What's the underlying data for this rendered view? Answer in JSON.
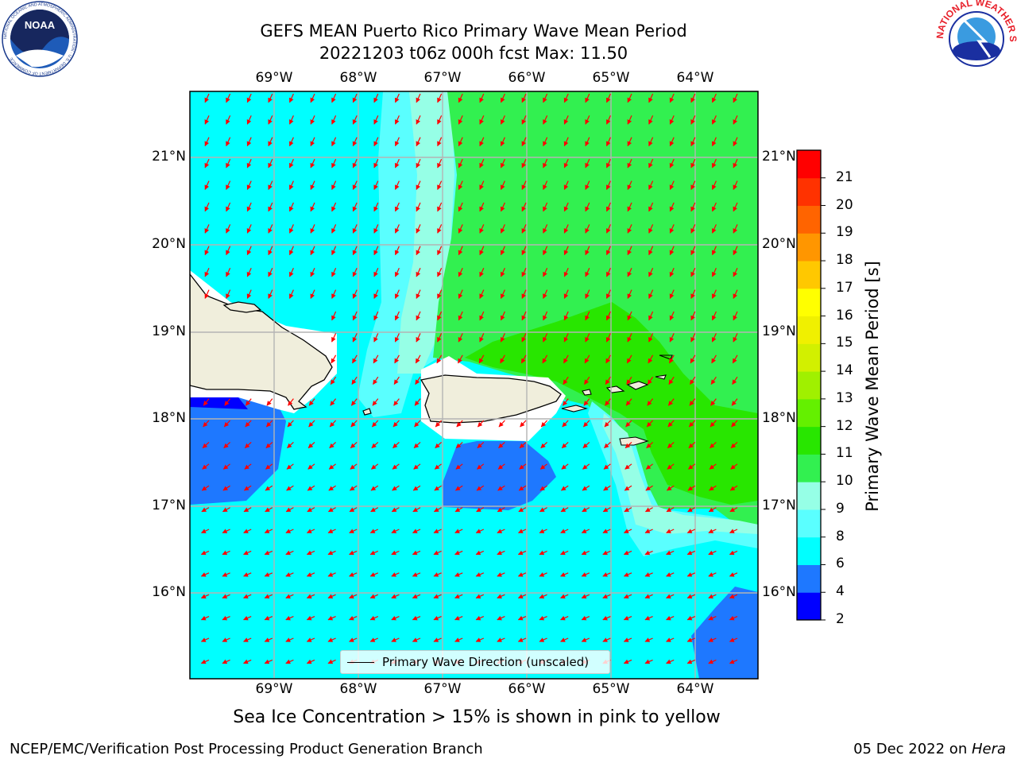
{
  "header": {
    "title_line1": "GEFS MEAN Puerto Rico Primary Wave Mean Period",
    "title_line2": "20221203 t06z 000h fcst   Max: 11.50"
  },
  "logos": {
    "noaa_text": "NOAA",
    "noaa_ring": "NATIONAL OCEANIC AND ATMOSPHERIC ADMINISTRATION · U.S. DEPARTMENT OF COMMERCE",
    "nws_ring": "NATIONAL WEATHER SERVICE"
  },
  "map": {
    "lon_labels": [
      "69°W",
      "68°W",
      "67°W",
      "66°W",
      "65°W",
      "64°W"
    ],
    "lat_labels": [
      "21°N",
      "20°N",
      "19°N",
      "18°N",
      "17°N",
      "16°N"
    ],
    "legend_label": "Primary Wave Direction (unscaled)",
    "vector_color": "#ff0000"
  },
  "colorbar": {
    "title": "Primary Wave Mean Period [s]",
    "ticks": [
      "2",
      "4",
      "6",
      "8",
      "9",
      "10",
      "11",
      "12",
      "13",
      "14",
      "15",
      "16",
      "17",
      "18",
      "19",
      "20",
      "21"
    ],
    "colors": [
      "#0000ff",
      "#1e78ff",
      "#00ffff",
      "#5affff",
      "#96ffe6",
      "#32f050",
      "#28e600",
      "#64f000",
      "#a0f000",
      "#d2f000",
      "#f0f000",
      "#ffff00",
      "#ffc800",
      "#ff9600",
      "#ff6400",
      "#ff3200",
      "#ff0000"
    ]
  },
  "notes": {
    "sea_ice": "Sea Ice Concentration > 15% is shown in pink to yellow"
  },
  "footer": {
    "left": "NCEP/EMC/Verification Post Processing Product Generation Branch",
    "right_prefix": "05 Dec 2022 on ",
    "right_host": "Hera"
  }
}
